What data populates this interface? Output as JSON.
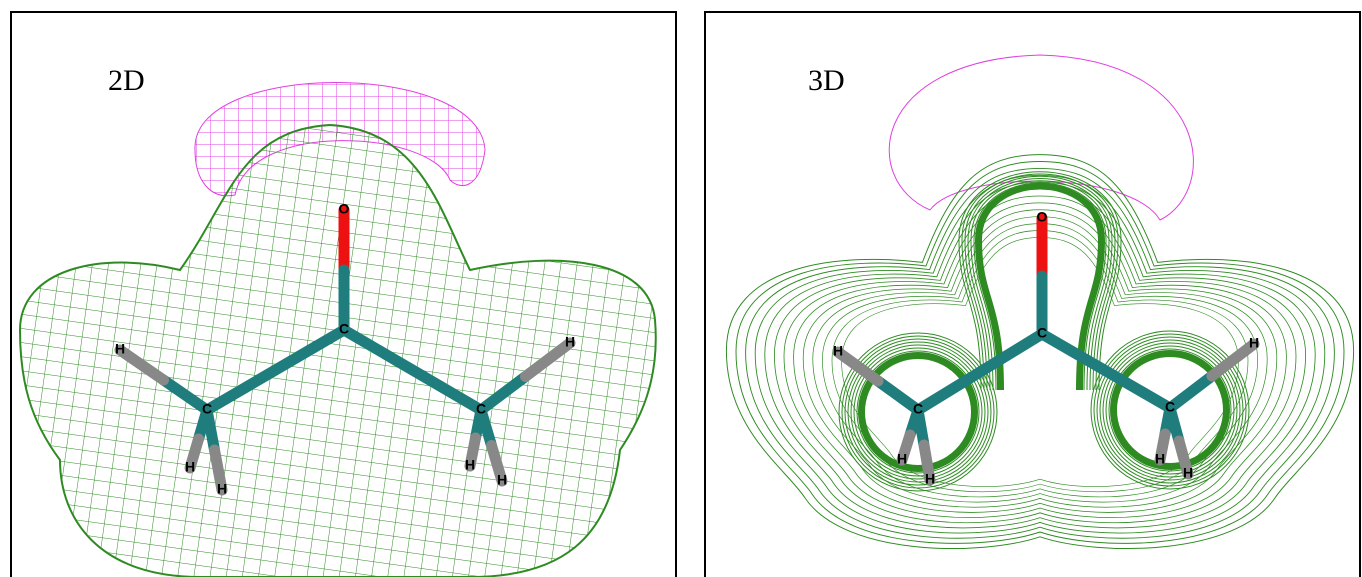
{
  "panels": [
    {
      "label": "2D",
      "atoms": [
        "O",
        "C",
        "C",
        "C",
        "H",
        "H",
        "H",
        "H",
        "H",
        "H"
      ]
    },
    {
      "label": "3D",
      "atoms": [
        "O",
        "C",
        "C",
        "C",
        "H",
        "H",
        "H",
        "H",
        "H",
        "H"
      ]
    }
  ]
}
